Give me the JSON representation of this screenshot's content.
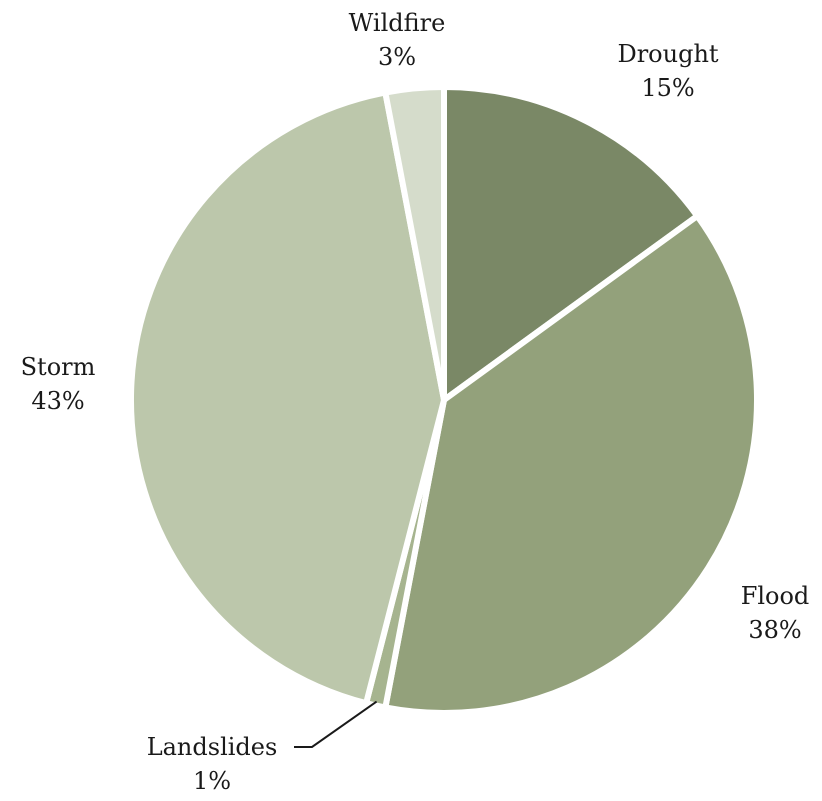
{
  "chart_data": {
    "type": "pie",
    "title": "",
    "slices": [
      {
        "name": "Drought",
        "value": 15,
        "label": "15%",
        "color": "#7a8866"
      },
      {
        "name": "Flood",
        "value": 38,
        "label": "38%",
        "color": "#93a17b"
      },
      {
        "name": "Landslides",
        "value": 1,
        "label": "1%",
        "color": "#a6b48f"
      },
      {
        "name": "Storm",
        "value": 43,
        "label": "43%",
        "color": "#bcc7ab"
      },
      {
        "name": "Wildfire",
        "value": 3,
        "label": "3%",
        "color": "#d5dccb"
      }
    ],
    "start_angle_deg": 0,
    "direction": "clockwise",
    "legend": "none"
  }
}
